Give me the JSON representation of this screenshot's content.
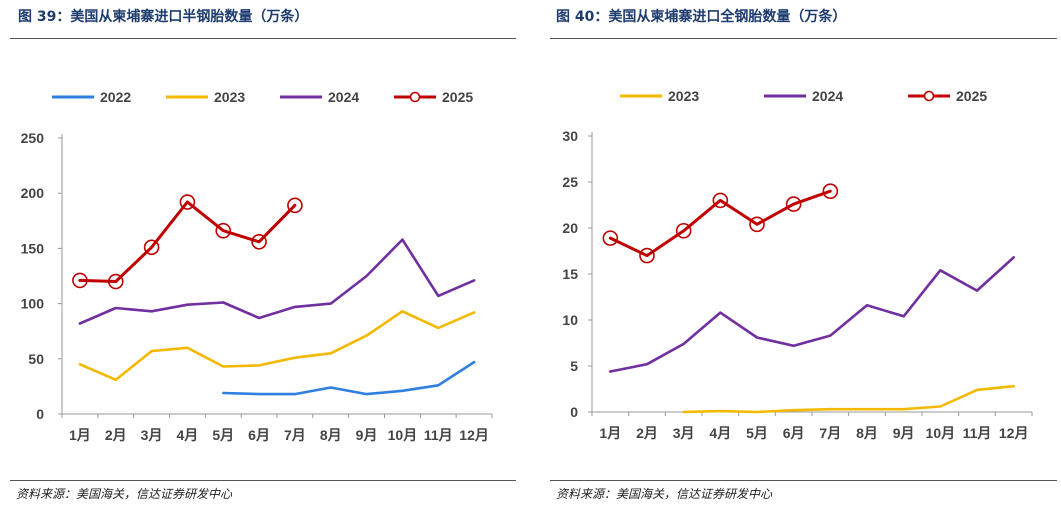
{
  "source_label": "资料来源：美国海关，信达证券研发中心",
  "chart_data": [
    {
      "type": "line",
      "title": "图 39：美国从柬埔寨进口半钢胎数量（万条）",
      "categories": [
        "1月",
        "2月",
        "3月",
        "4月",
        "5月",
        "6月",
        "7月",
        "8月",
        "9月",
        "10月",
        "11月",
        "12月"
      ],
      "ylim": [
        0,
        250
      ],
      "yticks": [
        0,
        50,
        100,
        150,
        200,
        250
      ],
      "legend_position": "top",
      "series": [
        {
          "name": "2022",
          "color": "#2f7fe0",
          "marker": false,
          "values": [
            null,
            null,
            null,
            null,
            19,
            18,
            18,
            24,
            18,
            21,
            26,
            47
          ]
        },
        {
          "name": "2023",
          "color": "#f5b800",
          "marker": false,
          "values": [
            45,
            31,
            57,
            60,
            43,
            44,
            51,
            55,
            71,
            93,
            78,
            92
          ]
        },
        {
          "name": "2024",
          "color": "#7030a0",
          "marker": false,
          "values": [
            82,
            96,
            93,
            99,
            101,
            87,
            97,
            100,
            125,
            158,
            107,
            121
          ]
        },
        {
          "name": "2025",
          "color": "#c00000",
          "marker": true,
          "values": [
            121,
            120,
            151,
            192,
            166,
            156,
            189,
            null,
            null,
            null,
            null,
            null
          ]
        }
      ]
    },
    {
      "type": "line",
      "title": "图 40：美国从柬埔寨进口全钢胎数量（万条）",
      "categories": [
        "1月",
        "2月",
        "3月",
        "4月",
        "5月",
        "6月",
        "7月",
        "8月",
        "9月",
        "10月",
        "11月",
        "12月"
      ],
      "ylim": [
        0,
        30
      ],
      "yticks": [
        0,
        5,
        10,
        15,
        20,
        25,
        30
      ],
      "legend_position": "top",
      "series": [
        {
          "name": "2023",
          "color": "#f5b800",
          "marker": false,
          "values": [
            null,
            null,
            0.0,
            0.1,
            0.0,
            0.2,
            0.3,
            0.3,
            0.3,
            0.6,
            2.4,
            2.8
          ]
        },
        {
          "name": "2024",
          "color": "#7030a0",
          "marker": false,
          "values": [
            4.4,
            5.2,
            7.4,
            10.8,
            8.1,
            7.2,
            8.3,
            11.6,
            10.4,
            15.4,
            13.2,
            16.8
          ]
        },
        {
          "name": "2025",
          "color": "#c00000",
          "marker": true,
          "values": [
            18.9,
            17.0,
            19.7,
            23.0,
            20.4,
            22.6,
            24.0,
            null,
            null,
            null,
            null,
            null
          ]
        }
      ]
    }
  ]
}
